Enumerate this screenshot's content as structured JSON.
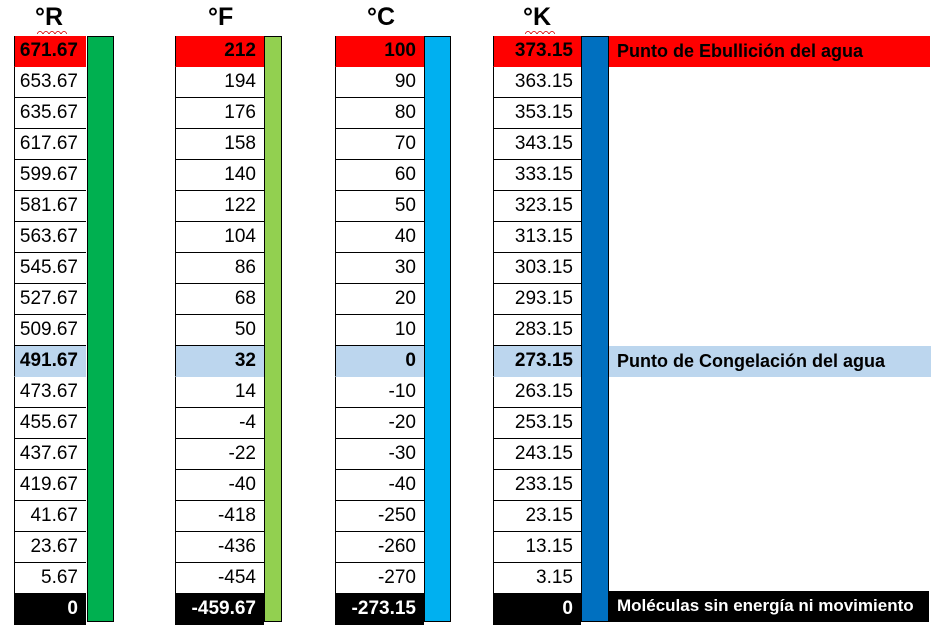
{
  "headers": {
    "rankine": "°R",
    "fahrenheit": "°F",
    "celsius": "°C",
    "kelvin": "°K"
  },
  "columns": {
    "rankine": [
      "671.67",
      "653.67",
      "635.67",
      "617.67",
      "599.67",
      "581.67",
      "563.67",
      "545.67",
      "527.67",
      "509.67",
      "491.67",
      "473.67",
      "455.67",
      "437.67",
      "419.67",
      "41.67",
      "23.67",
      "5.67",
      "0"
    ],
    "fahrenheit": [
      "212",
      "194",
      "176",
      "158",
      "140",
      "122",
      "104",
      "86",
      "68",
      "50",
      "32",
      "14",
      "-4",
      "-22",
      "-40",
      "-418",
      "-436",
      "-454",
      "-459.67"
    ],
    "celsius": [
      "100",
      "90",
      "80",
      "70",
      "60",
      "50",
      "40",
      "30",
      "20",
      "10",
      "0",
      "-10",
      "-20",
      "-30",
      "-40",
      "-250",
      "-260",
      "-270",
      "-273.15"
    ],
    "kelvin": [
      "373.15",
      "363.15",
      "353.15",
      "343.15",
      "333.15",
      "323.15",
      "313.15",
      "303.15",
      "293.15",
      "283.15",
      "273.15",
      "263.15",
      "253.15",
      "243.15",
      "233.15",
      "23.15",
      "13.15",
      "3.15",
      "0"
    ]
  },
  "notes": {
    "boiling": "Punto de Ebullición del agua",
    "freezing": "Punto de Congelación del agua",
    "absolute_zero": "Moléculas sin energía ni movimiento"
  },
  "colors": {
    "boiling_highlight": "#ff0000",
    "freezing_highlight": "#bcd6ee",
    "absolute_zero_highlight": "#000000",
    "rankine_bar": "#00b050",
    "fahrenheit_bar": "#92d050",
    "celsius_bar": "#00b0f0",
    "kelvin_bar": "#0070c0"
  }
}
